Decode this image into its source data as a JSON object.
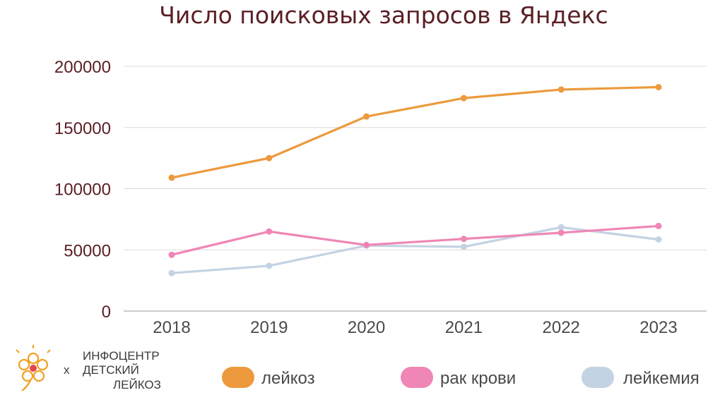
{
  "chart_data": {
    "type": "line",
    "title": "Число поисковых запросов в Яндекс",
    "xlabel": "",
    "ylabel": "",
    "categories": [
      "2018",
      "2019",
      "2020",
      "2021",
      "2022",
      "2023"
    ],
    "ylim": [
      0,
      200000
    ],
    "yticks": [
      0,
      50000,
      100000,
      150000,
      200000
    ],
    "ytick_labels": [
      "0",
      "50000",
      "100000",
      "150000",
      "200000"
    ],
    "grid": true,
    "legend_position": "bottom",
    "series": [
      {
        "name": "лейкоз",
        "color": "#ec9a3d",
        "values": [
          109000,
          125000,
          159000,
          174000,
          181000,
          183000
        ]
      },
      {
        "name": "рак крови",
        "color": "#ef86b5",
        "values": [
          46000,
          65000,
          54000,
          59000,
          64000,
          69500
        ]
      },
      {
        "name": "лейкемия",
        "color": "#c3d3e3",
        "values": [
          31000,
          37000,
          53500,
          52500,
          68500,
          58500
        ]
      }
    ]
  },
  "logo": {
    "prefix": "х",
    "lines": [
      "ИНФОЦЕНТР",
      "ДЕТСКИЙ",
      "ЛЕЙКОЗ"
    ],
    "icon": "flower-logo-icon",
    "color": "#f0a020"
  }
}
